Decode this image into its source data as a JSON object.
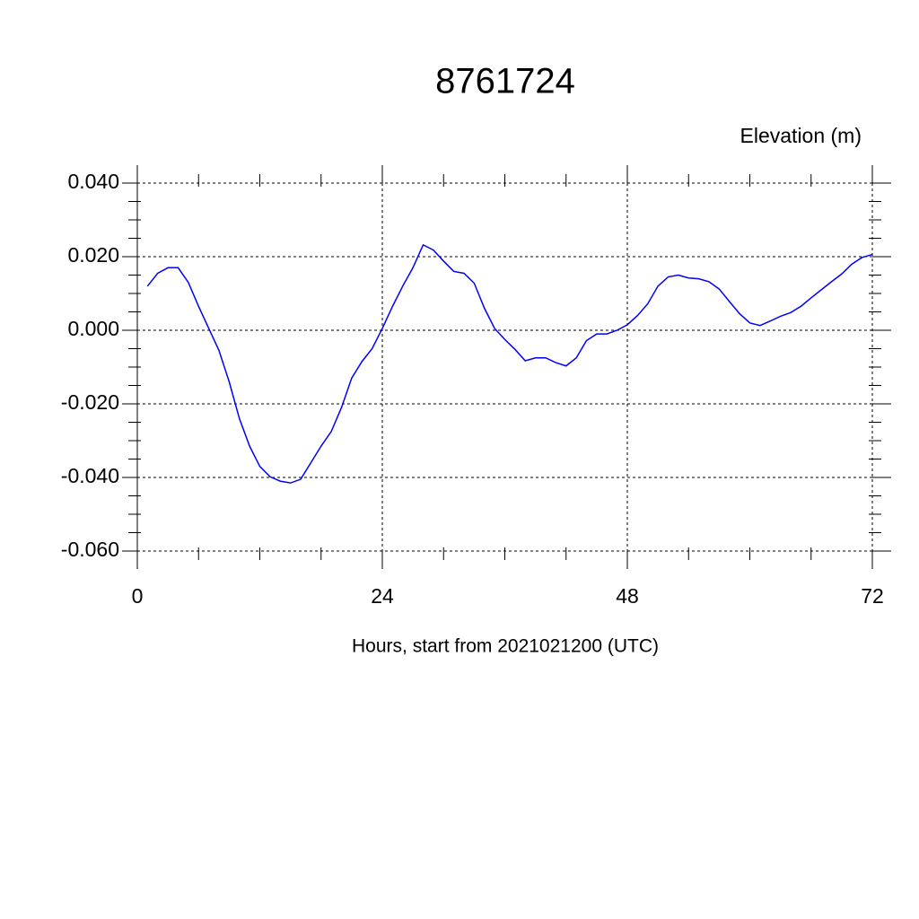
{
  "chart_data": {
    "type": "line",
    "title": "8761724",
    "y_axis_label": "Elevation (m)",
    "x_axis_label": "Hours, start from 2021021200 (UTC)",
    "x": [
      1,
      2,
      3,
      4,
      5,
      6,
      7,
      8,
      9,
      10,
      11,
      12,
      13,
      14,
      15,
      16,
      17,
      18,
      19,
      20,
      21,
      22,
      23,
      24,
      25,
      26,
      27,
      28,
      29,
      30,
      31,
      32,
      33,
      34,
      35,
      36,
      37,
      38,
      39,
      40,
      41,
      42,
      43,
      44,
      45,
      46,
      47,
      48,
      49,
      50,
      51,
      52,
      53,
      54,
      55,
      56,
      57,
      58,
      59,
      60,
      61,
      62,
      63,
      64,
      65,
      66,
      67,
      68,
      69,
      70,
      71,
      72
    ],
    "series": [
      {
        "name": "Elevation",
        "color": "#0000ff",
        "values": [
          0.012,
          0.0155,
          0.017,
          0.017,
          0.013,
          0.0065,
          0.0005,
          -0.0055,
          -0.014,
          -0.024,
          -0.0315,
          -0.037,
          -0.0398,
          -0.041,
          -0.0415,
          -0.0405,
          -0.036,
          -0.0315,
          -0.0275,
          -0.021,
          -0.013,
          -0.0085,
          -0.005,
          0.0005,
          0.0065,
          0.012,
          0.017,
          0.0232,
          0.0218,
          0.0188,
          0.016,
          0.0155,
          0.0128,
          0.006,
          0.0005,
          -0.0025,
          -0.0052,
          -0.0083,
          -0.0075,
          -0.0075,
          -0.0088,
          -0.0097,
          -0.0075,
          -0.0028,
          -0.001,
          -0.001,
          0,
          0.0015,
          0.004,
          0.0072,
          0.012,
          0.0145,
          0.015,
          0.0142,
          0.014,
          0.0132,
          0.0112,
          0.0078,
          0.0045,
          0.002,
          0.0013,
          0.0025,
          0.0038,
          0.0048,
          0.0065,
          0.0088,
          0.011,
          0.0132,
          0.0153,
          0.018,
          0.0198,
          0.0206
        ]
      }
    ],
    "xlim": [
      0,
      72
    ],
    "xticks": [
      0,
      24,
      48,
      72
    ],
    "ylim": [
      -0.06,
      0.04
    ],
    "yticks": [
      {
        "value": -0.06,
        "label": "-0.060"
      },
      {
        "value": -0.04,
        "label": "-0.040"
      },
      {
        "value": -0.02,
        "label": "-0.020"
      },
      {
        "value": 0,
        "label": "0.000"
      },
      {
        "value": 0.02,
        "label": "0.020"
      },
      {
        "value": 0.04,
        "label": "0.040"
      }
    ],
    "grid": true
  }
}
